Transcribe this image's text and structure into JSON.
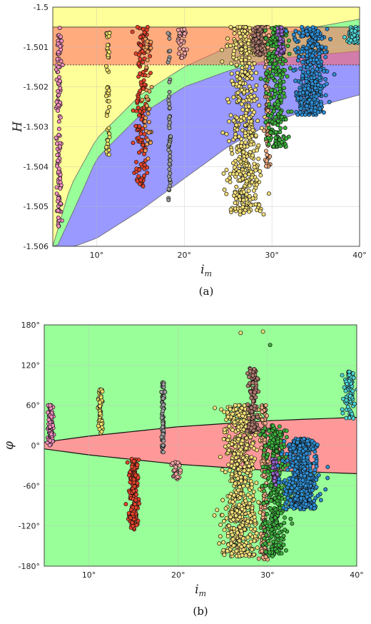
{
  "panels": [
    {
      "id": "a",
      "sublabel": "(a)",
      "xlabel": "i",
      "xlabel_sub": "m",
      "ylabel": "H",
      "yticks": [
        "-1.5",
        "-1.501",
        "-1.502",
        "-1.503",
        "-1.504",
        "-1.505",
        "-1.506"
      ],
      "xticks": [
        "10°",
        "20°",
        "30°",
        "40°"
      ]
    },
    {
      "id": "b",
      "sublabel": "(b)",
      "xlabel": "i",
      "xlabel_sub": "m",
      "ylabel": "φ",
      "yticks": [
        "180°",
        "120°",
        "60°",
        "0°",
        "-60°",
        "-120°",
        "-180°"
      ],
      "xticks": [
        "10°",
        "20°",
        "30°",
        "40°"
      ]
    }
  ],
  "chart_data": [
    {
      "type": "scatter",
      "xlabel": "i_m",
      "ylabel": "H̃",
      "xlim": [
        5,
        40
      ],
      "ylim": [
        -1.506,
        -1.5
      ],
      "grid": true,
      "regions": [
        {
          "color": "#ff9999",
          "desc_from_figure": "band",
          "y_top": -1.5005,
          "y_bottom": -1.50145
        },
        {
          "color": "#ffff99"
        },
        {
          "color": "#99ff99"
        },
        {
          "color": "#9999ff"
        }
      ],
      "boundary_curves": {
        "yellow_green": {
          "x": [
            5,
            7,
            10,
            15,
            20,
            25,
            30,
            35,
            40
          ],
          "y": [
            -1.506,
            -1.5045,
            -1.5033,
            -1.5022,
            -1.5015,
            -1.501,
            -1.5007,
            -1.5005,
            -1.5003
          ]
        },
        "green_blue": {
          "x": [
            5.5,
            8,
            10,
            15,
            20,
            25,
            30,
            35,
            40
          ],
          "y": [
            -1.506,
            -1.5048,
            -1.5038,
            -1.5027,
            -1.502,
            -1.5016,
            -1.5013,
            -1.5012,
            -1.5011
          ]
        },
        "blue_white": {
          "x": [
            7.5,
            10,
            15,
            20,
            25,
            30,
            35,
            40
          ],
          "y": [
            -1.506,
            -1.5058,
            -1.5051,
            -1.5043,
            -1.5035,
            -1.5029,
            -1.5025,
            -1.5022
          ]
        }
      },
      "series": [
        {
          "color": "#f48fc0",
          "x_center": 5.7,
          "x_spread": 0.25,
          "y_min": -1.5055,
          "y_max": -1.5005,
          "n": 120
        },
        {
          "color": "#f2e06b",
          "x_center": 11.3,
          "x_spread": 0.2,
          "y_min": -1.5037,
          "y_max": -1.5005,
          "n": 50
        },
        {
          "color": "#e8442a",
          "x_center": 15.2,
          "x_spread": 0.6,
          "y_min": -1.5045,
          "y_max": -1.5005,
          "n": 150
        },
        {
          "color": "#f2a05c",
          "x_center": 15.8,
          "x_spread": 0.4,
          "y_min": -1.5038,
          "y_max": -1.5008,
          "n": 40
        },
        {
          "color": "#9e9e9e",
          "x_center": 18.3,
          "x_spread": 0.15,
          "y_min": -1.505,
          "y_max": -1.5005,
          "n": 50
        },
        {
          "color": "#f3a3a3",
          "x_center": 19.8,
          "x_spread": 0.5,
          "y_min": -1.5013,
          "y_max": -1.5005,
          "n": 30
        },
        {
          "color": "#f5e07a",
          "x_center": 26.8,
          "x_spread": 1.5,
          "y_min": -1.5052,
          "y_max": -1.5005,
          "n": 500
        },
        {
          "color": "#b07b6e",
          "x_center": 28.5,
          "x_spread": 0.5,
          "y_min": -1.5012,
          "y_max": -1.5005,
          "n": 100
        },
        {
          "color": "#f4b084",
          "x_center": 29.5,
          "x_spread": 0.3,
          "y_min": -1.504,
          "y_max": -1.5005,
          "n": 120
        },
        {
          "color": "#3db23d",
          "x_center": 30.5,
          "x_spread": 1.0,
          "y_min": -1.5035,
          "y_max": -1.5005,
          "n": 250
        },
        {
          "color": "#9966cc",
          "x_center": 31.0,
          "x_spread": 0.3,
          "y_min": -1.5012,
          "y_max": -1.5005,
          "n": 40
        },
        {
          "color": "#2e8fd6",
          "x_center": 34.5,
          "x_spread": 1.5,
          "y_min": -1.5027,
          "y_max": -1.5005,
          "n": 400
        },
        {
          "color": "#4fd6d6",
          "x_center": 39.2,
          "x_spread": 0.6,
          "y_min": -1.5009,
          "y_max": -1.5005,
          "n": 60
        }
      ]
    },
    {
      "type": "scatter",
      "xlabel": "i_m",
      "ylabel": "φ",
      "xlim": [
        5,
        40
      ],
      "ylim": [
        -180,
        180
      ],
      "grid": true,
      "background_color": "#99ff99",
      "region": {
        "color": "#ff9999",
        "upper": {
          "x": [
            5,
            10,
            20,
            30,
            40
          ],
          "y": [
            5,
            14,
            28,
            37,
            42
          ]
        },
        "lower": {
          "x": [
            5,
            10,
            20,
            30,
            40
          ],
          "y": [
            -5,
            -14,
            -28,
            -37,
            -42
          ]
        }
      },
      "series": [
        {
          "color": "#f48fc0",
          "x_center": 5.7,
          "x_spread": 0.25,
          "y_min": 0,
          "y_max": 60,
          "n": 80
        },
        {
          "color": "#f2e06b",
          "x_center": 11.3,
          "x_spread": 0.2,
          "y_min": 15,
          "y_max": 85,
          "n": 60
        },
        {
          "color": "#e8442a",
          "x_center": 15.0,
          "x_spread": 0.5,
          "y_min": -125,
          "y_max": -20,
          "n": 160
        },
        {
          "color": "#9e9e9e",
          "x_center": 18.3,
          "x_spread": 0.15,
          "y_min": -10,
          "y_max": 95,
          "n": 70
        },
        {
          "color": "#f3a3a3",
          "x_center": 19.8,
          "x_spread": 0.4,
          "y_min": -50,
          "y_max": -25,
          "n": 30
        },
        {
          "color": "#f5e07a",
          "x_center": 27.0,
          "x_spread": 1.6,
          "y_min": -165,
          "y_max": 60,
          "n": 700
        },
        {
          "color": "#b07b6e",
          "x_center": 28.4,
          "x_spread": 0.5,
          "y_min": 20,
          "y_max": 115,
          "n": 120
        },
        {
          "color": "#f4b084",
          "x_center": 29.6,
          "x_spread": 0.3,
          "y_min": -170,
          "y_max": 60,
          "n": 160
        },
        {
          "color": "#3db23d",
          "x_center": 30.8,
          "x_spread": 1.0,
          "y_min": -165,
          "y_max": 30,
          "n": 350
        },
        {
          "color": "#9966cc",
          "x_center": 30.8,
          "x_spread": 0.3,
          "y_min": -60,
          "y_max": -20,
          "n": 40
        },
        {
          "color": "#2e8fd6",
          "x_center": 33.8,
          "x_spread": 1.5,
          "y_min": -95,
          "y_max": 10,
          "n": 550
        },
        {
          "color": "#4fd6d6",
          "x_center": 39.2,
          "x_spread": 0.5,
          "y_min": 40,
          "y_max": 110,
          "n": 80
        }
      ],
      "outliers": [
        {
          "x": 27.0,
          "y": 168,
          "color": "#f5e07a"
        },
        {
          "x": 29.5,
          "y": 170,
          "color": "#f5e07a"
        },
        {
          "x": 30.3,
          "y": 150,
          "color": "#3db23d"
        }
      ]
    }
  ]
}
